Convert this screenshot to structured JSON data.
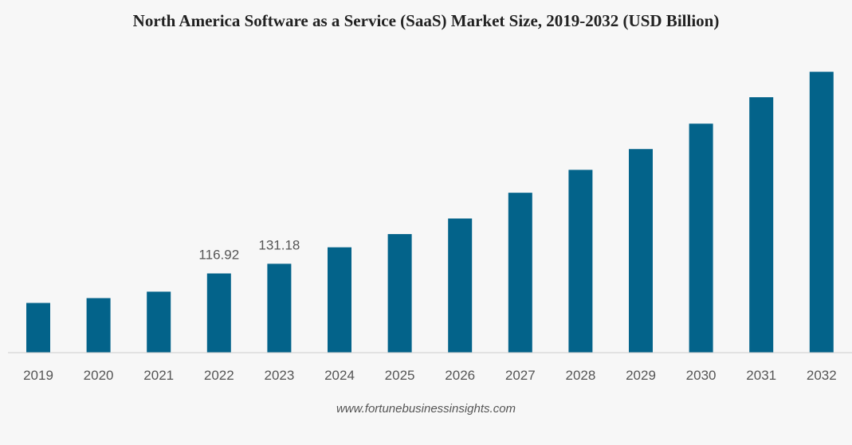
{
  "chart_data": {
    "type": "bar",
    "title": "North America Software as a Service (SaaS) Market Size, 2019-2032 (USD Billion)",
    "xlabel": "",
    "ylabel": "",
    "categories": [
      "2019",
      "2020",
      "2021",
      "2022",
      "2023",
      "2024",
      "2025",
      "2026",
      "2027",
      "2028",
      "2029",
      "2030",
      "2031",
      "2032"
    ],
    "values": [
      73.4,
      80.5,
      90.0,
      116.92,
      131.18,
      155.5,
      175.0,
      198.0,
      236.0,
      269.8,
      300.5,
      338.0,
      377.0,
      414.5
    ],
    "data_labels": [
      "",
      "",
      "",
      "116.92",
      "131.18",
      "",
      "",
      "",
      "",
      "",
      "",
      "",
      "",
      ""
    ],
    "ylim": [
      0,
      450
    ],
    "grid": false,
    "legend": "none",
    "bar_color": "#03638a",
    "axis_color": "#cccccc"
  },
  "source": "www.fortunebusinessinsights.com"
}
